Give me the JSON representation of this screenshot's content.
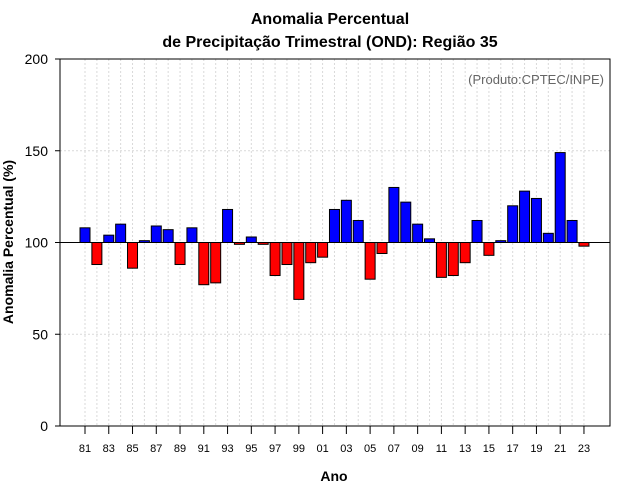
{
  "chart_data": {
    "type": "bar",
    "title_line1": "Anomalia Percentual",
    "title_line2": "de Precipitação Trimestral (OND): Região 35",
    "xlabel": "Ano",
    "ylabel": "Anomalia Percentual (%)",
    "credit": "(Produto:CPTEC/INPE)",
    "ylim": [
      0,
      200
    ],
    "yticks": [
      0,
      50,
      100,
      150,
      200
    ],
    "baseline": 100,
    "xtick_labels": [
      "81",
      "83",
      "85",
      "87",
      "89",
      "91",
      "93",
      "95",
      "97",
      "99",
      "01",
      "03",
      "05",
      "07",
      "09",
      "11",
      "13",
      "15",
      "17",
      "19",
      "21",
      "23"
    ],
    "years": [
      "1981",
      "1982",
      "1983",
      "1984",
      "1985",
      "1986",
      "1987",
      "1988",
      "1989",
      "1990",
      "1991",
      "1992",
      "1993",
      "1994",
      "1995",
      "1996",
      "1997",
      "1998",
      "1999",
      "2000",
      "2001",
      "2002",
      "2003",
      "2004",
      "2005",
      "2006",
      "2007",
      "2008",
      "2009",
      "2010",
      "2011",
      "2012",
      "2013",
      "2014",
      "2015",
      "2016",
      "2017",
      "2018",
      "2019",
      "2020",
      "2021",
      "2022",
      "2023"
    ],
    "values": [
      108,
      88,
      104,
      110,
      86,
      101,
      109,
      107,
      88,
      108,
      77,
      78,
      118,
      99,
      103,
      99,
      82,
      88,
      69,
      89,
      92,
      118,
      123,
      112,
      80,
      94,
      130,
      122,
      110,
      102,
      81,
      82,
      89,
      112,
      93,
      101,
      120,
      128,
      124,
      105,
      149,
      112,
      98
    ],
    "colors": {
      "above": "#0000ff",
      "below": "#ff0000",
      "grid": "#d9d9d9",
      "axis": "#000000"
    }
  }
}
